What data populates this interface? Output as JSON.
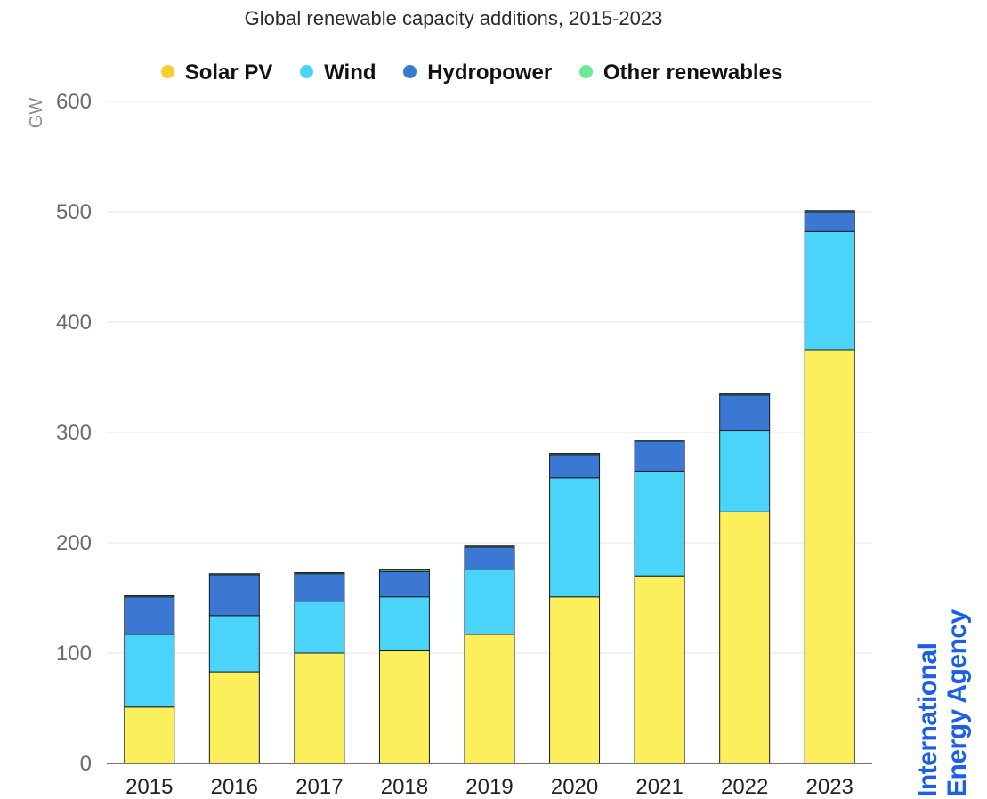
{
  "chart_data": {
    "type": "bar",
    "stacked": true,
    "title": "Global renewable capacity additions, 2015-2023",
    "ylabel": "GW",
    "ylim": [
      0,
      600
    ],
    "yticks": [
      0,
      100,
      200,
      300,
      400,
      500,
      600
    ],
    "grid": true,
    "legend_position": "top",
    "categories": [
      "2015",
      "2016",
      "2017",
      "2018",
      "2019",
      "2020",
      "2021",
      "2022",
      "2023"
    ],
    "series": [
      {
        "name": "Solar PV",
        "color": "#fcef5c",
        "legend_color": "#f8cf2a",
        "values": [
          51,
          83,
          100,
          102,
          117,
          151,
          170,
          228,
          375
        ]
      },
      {
        "name": "Wind",
        "color": "#4bd4f9",
        "legend_color": "#4bd4f9",
        "values": [
          66,
          51,
          47,
          49,
          59,
          108,
          95,
          74,
          107
        ]
      },
      {
        "name": "Hydropower",
        "color": "#3a78d3",
        "legend_color": "#3a78d3",
        "values": [
          34,
          37,
          25,
          23,
          20,
          21,
          27,
          32,
          18
        ]
      },
      {
        "name": "Other renewables",
        "color": "#4de78c",
        "legend_color": "#6fe898",
        "values": [
          1,
          1,
          1,
          1.5,
          1,
          1,
          1,
          1,
          1
        ]
      }
    ]
  },
  "logo": {
    "line1": "International",
    "line2": "Energy Agency",
    "color": "#1a5fe6"
  }
}
